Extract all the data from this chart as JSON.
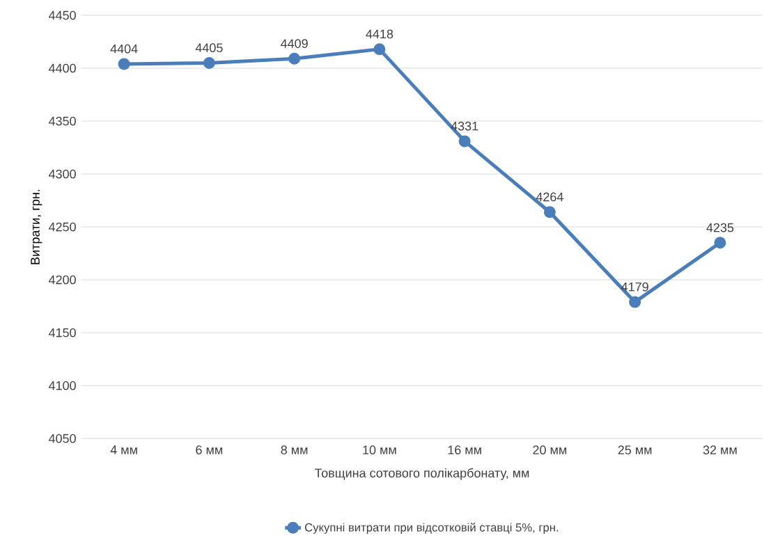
{
  "chart_data": {
    "type": "line",
    "xlabel": "Товщина сотового полікарбонату, мм",
    "ylabel": "Витрати, грн.",
    "categories": [
      "4 мм",
      "6 мм",
      "8 мм",
      "10 мм",
      "16 мм",
      "20 мм",
      "25 мм",
      "32 мм"
    ],
    "series": [
      {
        "name": "Сукупні витрати при відсотковій ставці 5%, грн.",
        "color": "#4a7ebb",
        "values": [
          4404,
          4405,
          4409,
          4418,
          4331,
          4264,
          4179,
          4235
        ]
      }
    ],
    "ylim": [
      4050,
      4450
    ],
    "yticks": [
      4050,
      4100,
      4150,
      4200,
      4250,
      4300,
      4350,
      4400,
      4450
    ],
    "grid": "y",
    "legend": "bottom",
    "marker": "circle",
    "line_style": "solid",
    "data_labels": true
  }
}
